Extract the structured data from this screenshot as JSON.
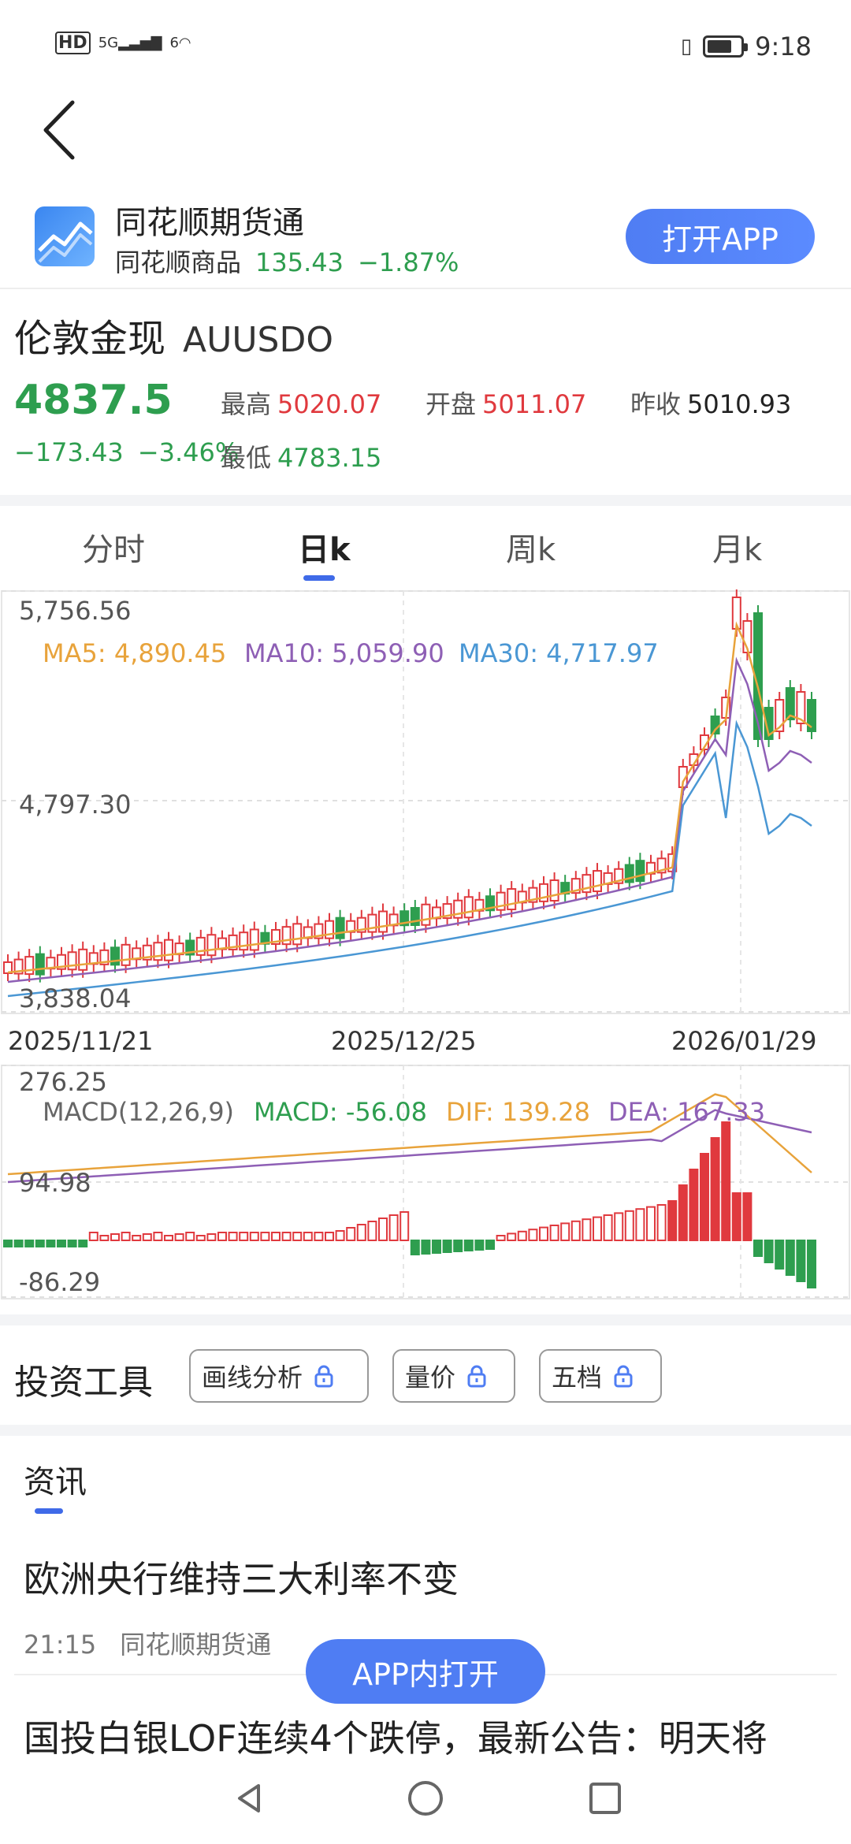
{
  "status_bar": {
    "hd": "HD",
    "signal": "5G",
    "wifi": "6",
    "time": "9:18"
  },
  "banner": {
    "app_name": "同花顺期货通",
    "sub_label": "同花顺商品",
    "sub_price": "135.43",
    "sub_change": "−1.87%",
    "open_button": "打开APP"
  },
  "instrument": {
    "name": "伦敦金现",
    "code": "AUUSDO",
    "price": "4837.5",
    "change": "−173.43",
    "change_pct": "−3.46%",
    "high_label": "最高",
    "high": "5020.07",
    "open_label": "开盘",
    "open": "5011.07",
    "prev_label": "昨收",
    "prev": "5010.93",
    "low_label": "最低",
    "low": "4783.15"
  },
  "tabs": [
    {
      "label": "分时"
    },
    {
      "label": "日k"
    },
    {
      "label": "周k"
    },
    {
      "label": "月k"
    }
  ],
  "kline": {
    "y_top": "5,756.56",
    "y_mid": "4,797.30",
    "y_bottom": "3,838.04",
    "ma5": "MA5: 4,890.45",
    "ma10": "MA10: 5,059.90",
    "ma30": "MA30: 4,717.97",
    "x_labels": [
      "2025/11/21",
      "2025/12/25",
      "2026/01/29"
    ],
    "colors": {
      "ma5": "#e8a33b",
      "ma10": "#8e5fb5",
      "ma30": "#4a97d4",
      "up": "#e0393e",
      "down": "#2e9e4f"
    }
  },
  "macd": {
    "y_top": "276.25",
    "y_mid": "94.98",
    "y_bottom": "-86.29",
    "name": "MACD(12,26,9)",
    "macd": "MACD: -56.08",
    "dif": "DIF: 139.28",
    "dea": "DEA: 167.33"
  },
  "tools": {
    "title": "投资工具",
    "buttons": [
      "画线分析",
      "量价",
      "五档"
    ]
  },
  "news": {
    "tab": "资讯",
    "items": [
      {
        "title": "欧洲央行维持三大利率不变",
        "time": "21:15",
        "source": "同花顺期货通"
      },
      {
        "title": "国投白银LOF连续4个跌停，最新公告：明天将"
      }
    ],
    "open_in_app": "APP内打开"
  },
  "nav": {
    "back": "back-icon",
    "home": "home-icon",
    "recent": "recent-icon"
  }
}
